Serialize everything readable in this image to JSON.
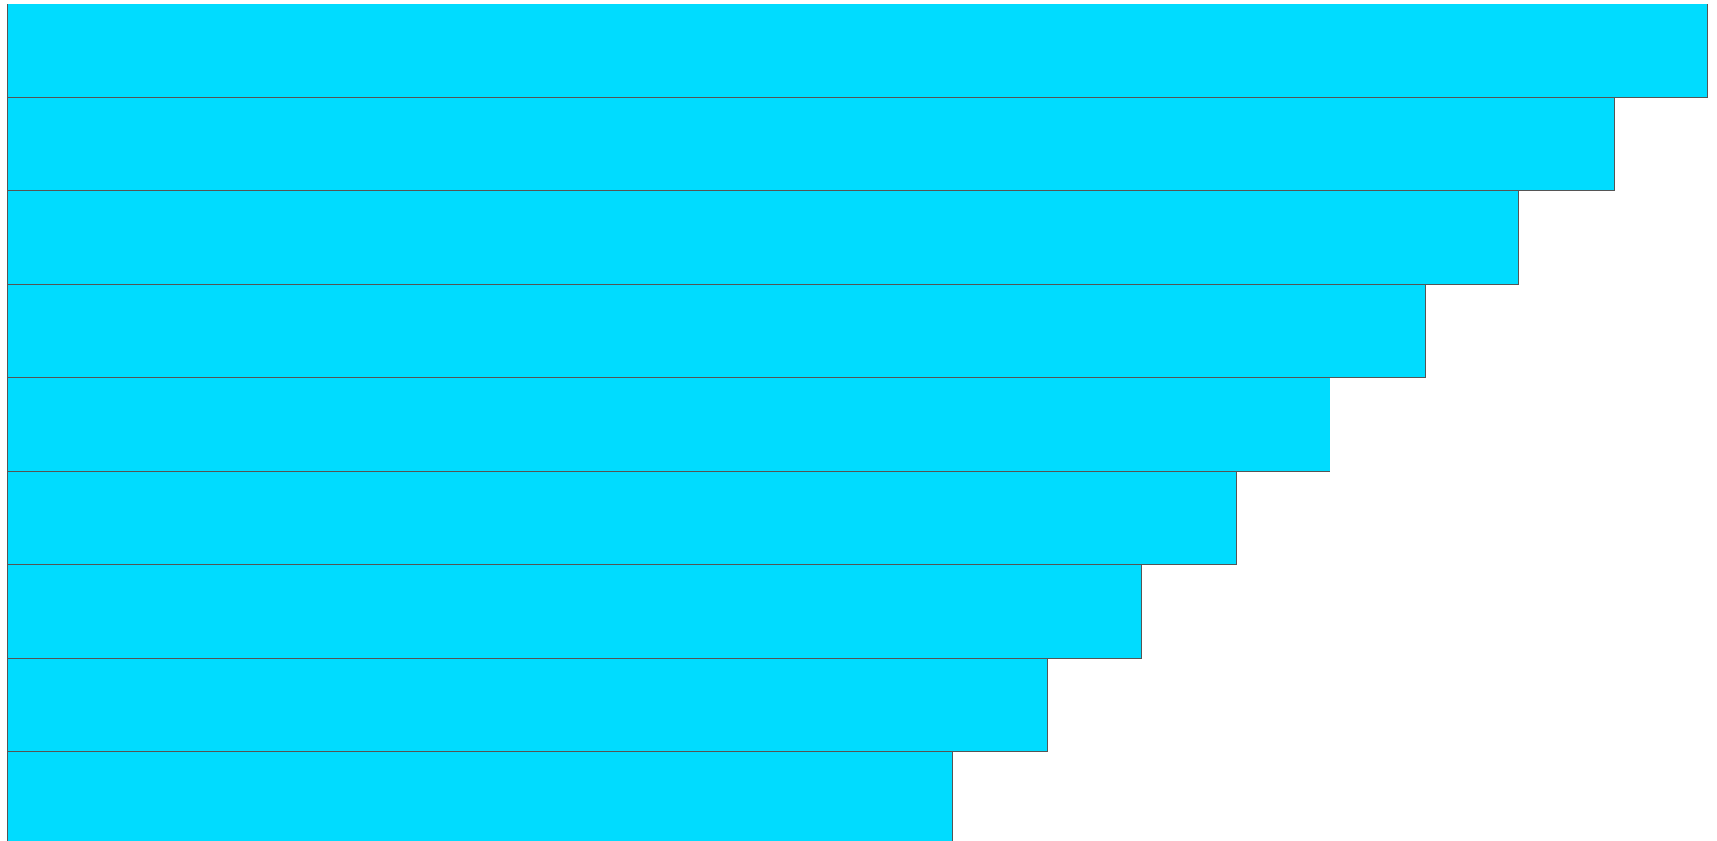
{
  "colors": {
    "bar_fill": "#00dcff",
    "bar_stroke": "#555555",
    "background": "#ffffff"
  },
  "chart_data": {
    "type": "bar",
    "orientation": "horizontal",
    "categories": [
      "",
      "",
      "",
      "",
      "",
      "",
      "",
      "",
      ""
    ],
    "values": [
      1.0,
      0.945,
      0.889,
      0.834,
      0.778,
      0.723,
      0.667,
      0.612,
      0.556
    ],
    "title": "",
    "xlabel": "",
    "ylabel": "",
    "grid": false,
    "legend": "none"
  }
}
